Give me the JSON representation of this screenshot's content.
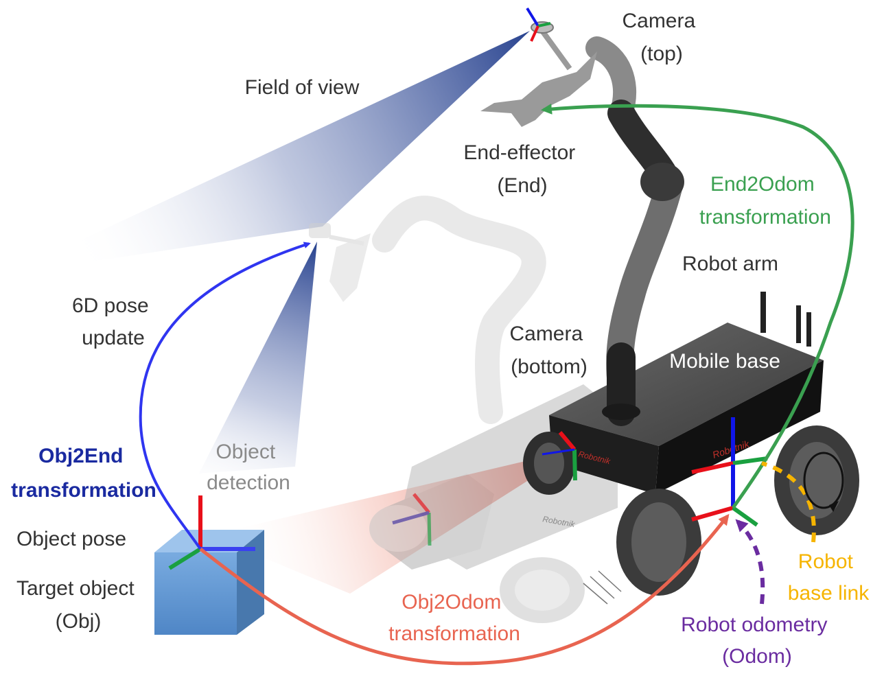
{
  "labels": {
    "camera_top": [
      "Camera",
      "(top)"
    ],
    "field_of_view": "Field of view",
    "end_effector": [
      "End-effector",
      "(End)"
    ],
    "end2odom": [
      "End2Odom",
      "transformation"
    ],
    "robot_arm": "Robot arm",
    "pose_update": [
      "6D pose",
      "update"
    ],
    "camera_bottom": [
      "Camera",
      "(bottom)"
    ],
    "mobile_base": "Mobile base",
    "obj2end": [
      "Obj2End",
      "transformation"
    ],
    "object_detection": [
      "Object",
      "detection"
    ],
    "object_pose": "Object pose",
    "target_object": [
      "Target object",
      "(Obj)"
    ],
    "obj2odom": [
      "Obj2Odom",
      "transformation"
    ],
    "robot_base_link": [
      "Robot",
      "base link"
    ],
    "robot_odometry": [
      "Robot odometry",
      "(Odom)"
    ],
    "brand_top": "Robotnik",
    "brand_side": "Robotnik"
  },
  "colors": {
    "text_gray": "#333333",
    "text_light_gray": "#8a8a8a",
    "obj2end_blue": "#1a2aa0",
    "end2odom_green": "#3aa050",
    "obj2odom_red": "#e86450",
    "base_link_yellow": "#f6b400",
    "odom_purple": "#6a2ca0",
    "arrow_blue": "#2f35f0",
    "axis_red": "#e8101a",
    "axis_green": "#1aa040",
    "axis_blue": "#1016e8",
    "cube_blue": "#5f95d0"
  }
}
